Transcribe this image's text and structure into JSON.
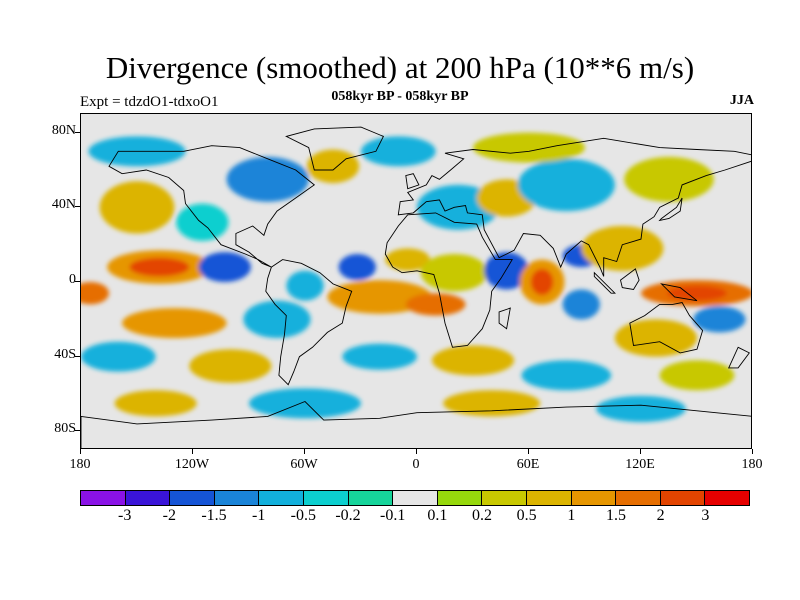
{
  "title": "Divergence (smoothed) at 200 hPa (10**6 m/s)",
  "experiment": "Expt = tdzdO1-tdxoO1",
  "period": "058kyr BP - 058kyr BP",
  "season": "JJA",
  "map": {
    "type": "filled-contour world map",
    "projection": "cylindrical equidistant",
    "variable": "200 hPa divergence difference",
    "lat_labels": [
      {
        "lat": 80,
        "label": "80N"
      },
      {
        "lat": 40,
        "label": "40N"
      },
      {
        "lat": 0,
        "label": "0"
      },
      {
        "lat": -40,
        "label": "40S"
      },
      {
        "lat": -80,
        "label": "80S"
      }
    ],
    "lon_labels": [
      {
        "lon": -180,
        "label": "180"
      },
      {
        "lon": -120,
        "label": "120W"
      },
      {
        "lon": -60,
        "label": "60W"
      },
      {
        "lon": 0,
        "label": "0"
      },
      {
        "lon": 60,
        "label": "60E"
      },
      {
        "lon": 120,
        "label": "120E"
      },
      {
        "lon": 180,
        "label": "180"
      }
    ]
  },
  "colorbar": {
    "colors": [
      "#8a12e6",
      "#3a14d8",
      "#1554d6",
      "#1a84d8",
      "#12b0dc",
      "#0ccfcf",
      "#16d49a",
      "#e6e6e6",
      "#96d80c",
      "#c8c800",
      "#dcb400",
      "#e69600",
      "#e66e00",
      "#e34400",
      "#e60000"
    ],
    "labels": [
      "-3",
      "-2",
      "-1.5",
      "-1",
      "-0.5",
      "-0.2",
      "-0.1",
      "0.1",
      "0.2",
      "0.5",
      "1",
      "1.5",
      "2",
      "3"
    ]
  },
  "anomalies": [
    {
      "lon": -138,
      "lat": 8,
      "rx": 28,
      "ry": 9,
      "level": 11
    },
    {
      "lon": -138,
      "lat": 8,
      "rx": 16,
      "ry": 5,
      "level": 13
    },
    {
      "lon": -103,
      "lat": 8,
      "rx": 14,
      "ry": 8,
      "level": 2
    },
    {
      "lon": -175,
      "lat": -6,
      "rx": 10,
      "ry": 6,
      "level": 12
    },
    {
      "lon": -130,
      "lat": -22,
      "rx": 28,
      "ry": 8,
      "level": 11
    },
    {
      "lon": -150,
      "lat": 40,
      "rx": 20,
      "ry": 14,
      "level": 10
    },
    {
      "lon": -115,
      "lat": 32,
      "rx": 14,
      "ry": 10,
      "level": 5
    },
    {
      "lon": -75,
      "lat": -20,
      "rx": 18,
      "ry": 10,
      "level": 4
    },
    {
      "lon": -60,
      "lat": -2,
      "rx": 10,
      "ry": 8,
      "level": 4
    },
    {
      "lon": -32,
      "lat": 8,
      "rx": 10,
      "ry": 7,
      "level": 2
    },
    {
      "lon": -5,
      "lat": 12,
      "rx": 12,
      "ry": 6,
      "level": 10
    },
    {
      "lon": -20,
      "lat": -8,
      "rx": 28,
      "ry": 9,
      "level": 11
    },
    {
      "lon": 10,
      "lat": -12,
      "rx": 16,
      "ry": 6,
      "level": 12
    },
    {
      "lon": 20,
      "lat": 5,
      "rx": 18,
      "ry": 10,
      "level": 9
    },
    {
      "lon": 48,
      "lat": 6,
      "rx": 12,
      "ry": 10,
      "level": 2
    },
    {
      "lon": 67,
      "lat": 0,
      "rx": 12,
      "ry": 12,
      "level": 11
    },
    {
      "lon": 67,
      "lat": 0,
      "rx": 6,
      "ry": 7,
      "level": 13
    },
    {
      "lon": 88,
      "lat": 14,
      "rx": 10,
      "ry": 6,
      "level": 2
    },
    {
      "lon": 110,
      "lat": 18,
      "rx": 22,
      "ry": 12,
      "level": 10
    },
    {
      "lon": 88,
      "lat": -12,
      "rx": 10,
      "ry": 8,
      "level": 3
    },
    {
      "lon": 150,
      "lat": -6,
      "rx": 30,
      "ry": 7,
      "level": 12
    },
    {
      "lon": 150,
      "lat": -6,
      "rx": 16,
      "ry": 4,
      "level": 13
    },
    {
      "lon": 162,
      "lat": -20,
      "rx": 14,
      "ry": 7,
      "level": 3
    },
    {
      "lon": 128,
      "lat": -30,
      "rx": 22,
      "ry": 10,
      "level": 10
    },
    {
      "lon": 22,
      "lat": 40,
      "rx": 22,
      "ry": 12,
      "level": 4
    },
    {
      "lon": 48,
      "lat": 45,
      "rx": 16,
      "ry": 10,
      "level": 10
    },
    {
      "lon": 80,
      "lat": 52,
      "rx": 26,
      "ry": 14,
      "level": 4
    },
    {
      "lon": 135,
      "lat": 55,
      "rx": 24,
      "ry": 12,
      "level": 9
    },
    {
      "lon": -80,
      "lat": 55,
      "rx": 22,
      "ry": 12,
      "level": 3
    },
    {
      "lon": -45,
      "lat": 62,
      "rx": 14,
      "ry": 9,
      "level": 10
    },
    {
      "lon": -10,
      "lat": 70,
      "rx": 20,
      "ry": 8,
      "level": 4
    },
    {
      "lon": 60,
      "lat": 72,
      "rx": 30,
      "ry": 8,
      "level": 9
    },
    {
      "lon": -150,
      "lat": 70,
      "rx": 26,
      "ry": 8,
      "level": 4
    },
    {
      "lon": -160,
      "lat": -40,
      "rx": 20,
      "ry": 8,
      "level": 4
    },
    {
      "lon": -100,
      "lat": -45,
      "rx": 22,
      "ry": 9,
      "level": 10
    },
    {
      "lon": -20,
      "lat": -40,
      "rx": 20,
      "ry": 7,
      "level": 4
    },
    {
      "lon": 30,
      "lat": -42,
      "rx": 22,
      "ry": 8,
      "level": 10
    },
    {
      "lon": 80,
      "lat": -50,
      "rx": 24,
      "ry": 8,
      "level": 4
    },
    {
      "lon": 150,
      "lat": -50,
      "rx": 20,
      "ry": 8,
      "level": 9
    },
    {
      "lon": -60,
      "lat": -65,
      "rx": 30,
      "ry": 8,
      "level": 4
    },
    {
      "lon": 40,
      "lat": -65,
      "rx": 26,
      "ry": 7,
      "level": 10
    },
    {
      "lon": 120,
      "lat": -68,
      "rx": 24,
      "ry": 7,
      "level": 4
    },
    {
      "lon": -140,
      "lat": -65,
      "rx": 22,
      "ry": 7,
      "level": 10
    }
  ],
  "land": [
    {
      "name": "north-america",
      "points": [
        [
          -165,
          62
        ],
        [
          -160,
          70
        ],
        [
          -140,
          70
        ],
        [
          -125,
          70
        ],
        [
          -110,
          73
        ],
        [
          -95,
          72
        ],
        [
          -80,
          66
        ],
        [
          -65,
          60
        ],
        [
          -55,
          52
        ],
        [
          -65,
          45
        ],
        [
          -75,
          38
        ],
        [
          -80,
          31
        ],
        [
          -82,
          25
        ],
        [
          -88,
          30
        ],
        [
          -97,
          26
        ],
        [
          -97,
          20
        ],
        [
          -90,
          16
        ],
        [
          -83,
          10
        ],
        [
          -78,
          8
        ],
        [
          -85,
          12
        ],
        [
          -92,
          15
        ],
        [
          -105,
          20
        ],
        [
          -112,
          29
        ],
        [
          -117,
          33
        ],
        [
          -124,
          42
        ],
        [
          -125,
          49
        ],
        [
          -133,
          56
        ],
        [
          -145,
          60
        ],
        [
          -158,
          58
        ],
        [
          -165,
          62
        ]
      ]
    },
    {
      "name": "greenland",
      "points": [
        [
          -55,
          60
        ],
        [
          -45,
          60
        ],
        [
          -38,
          66
        ],
        [
          -22,
          70
        ],
        [
          -18,
          78
        ],
        [
          -30,
          83
        ],
        [
          -55,
          82
        ],
        [
          -70,
          78
        ],
        [
          -58,
          72
        ],
        [
          -55,
          60
        ]
      ]
    },
    {
      "name": "south-america",
      "points": [
        [
          -78,
          8
        ],
        [
          -72,
          12
        ],
        [
          -62,
          10
        ],
        [
          -52,
          5
        ],
        [
          -45,
          -1
        ],
        [
          -35,
          -5
        ],
        [
          -38,
          -13
        ],
        [
          -40,
          -22
        ],
        [
          -48,
          -27
        ],
        [
          -56,
          -35
        ],
        [
          -63,
          -40
        ],
        [
          -66,
          -48
        ],
        [
          -69,
          -55
        ],
        [
          -74,
          -50
        ],
        [
          -73,
          -40
        ],
        [
          -71,
          -28
        ],
        [
          -70,
          -18
        ],
        [
          -76,
          -12
        ],
        [
          -81,
          -5
        ],
        [
          -80,
          2
        ],
        [
          -78,
          8
        ]
      ]
    },
    {
      "name": "africa",
      "points": [
        [
          -17,
          15
        ],
        [
          -16,
          21
        ],
        [
          -10,
          30
        ],
        [
          -5,
          36
        ],
        [
          10,
          37
        ],
        [
          20,
          32
        ],
        [
          32,
          31
        ],
        [
          35,
          24
        ],
        [
          42,
          12
        ],
        [
          51,
          12
        ],
        [
          45,
          2
        ],
        [
          40,
          -5
        ],
        [
          39,
          -15
        ],
        [
          35,
          -25
        ],
        [
          27,
          -34
        ],
        [
          19,
          -35
        ],
        [
          15,
          -22
        ],
        [
          12,
          -6
        ],
        [
          9,
          4
        ],
        [
          0,
          6
        ],
        [
          -8,
          5
        ],
        [
          -13,
          8
        ],
        [
          -17,
          15
        ]
      ]
    },
    {
      "name": "eurasia",
      "points": [
        [
          -10,
          36
        ],
        [
          -9,
          43
        ],
        [
          -2,
          44
        ],
        [
          -5,
          48
        ],
        [
          5,
          52
        ],
        [
          8,
          57
        ],
        [
          12,
          55
        ],
        [
          18,
          60
        ],
        [
          25,
          66
        ],
        [
          15,
          69
        ],
        [
          30,
          71
        ],
        [
          50,
          69
        ],
        [
          60,
          70
        ],
        [
          75,
          73
        ],
        [
          100,
          77
        ],
        [
          130,
          72
        ],
        [
          150,
          71
        ],
        [
          170,
          70
        ],
        [
          180,
          68
        ],
        [
          180,
          65
        ],
        [
          165,
          60
        ],
        [
          155,
          57
        ],
        [
          142,
          52
        ],
        [
          140,
          45
        ],
        [
          130,
          40
        ],
        [
          127,
          35
        ],
        [
          121,
          31
        ],
        [
          120,
          23
        ],
        [
          110,
          20
        ],
        [
          107,
          11
        ],
        [
          100,
          13
        ],
        [
          100,
          3
        ],
        [
          98,
          8
        ],
        [
          92,
          20
        ],
        [
          88,
          22
        ],
        [
          80,
          15
        ],
        [
          77,
          8
        ],
        [
          73,
          18
        ],
        [
          66,
          25
        ],
        [
          57,
          26
        ],
        [
          52,
          17
        ],
        [
          44,
          13
        ],
        [
          36,
          28
        ],
        [
          35,
          36
        ],
        [
          27,
          37
        ],
        [
          26,
          41
        ],
        [
          20,
          40
        ],
        [
          15,
          38
        ],
        [
          12,
          44
        ],
        [
          5,
          43
        ],
        [
          -2,
          37
        ],
        [
          -10,
          36
        ]
      ]
    },
    {
      "name": "australia",
      "points": [
        [
          114,
          -22
        ],
        [
          122,
          -18
        ],
        [
          130,
          -12
        ],
        [
          137,
          -12
        ],
        [
          142,
          -11
        ],
        [
          146,
          -18
        ],
        [
          153,
          -26
        ],
        [
          150,
          -36
        ],
        [
          141,
          -38
        ],
        [
          130,
          -32
        ],
        [
          116,
          -34
        ],
        [
          114,
          -22
        ]
      ]
    },
    {
      "name": "antarctica",
      "points": [
        [
          -180,
          -72
        ],
        [
          -150,
          -76
        ],
        [
          -110,
          -74
        ],
        [
          -80,
          -72
        ],
        [
          -60,
          -64
        ],
        [
          -50,
          -74
        ],
        [
          -20,
          -73
        ],
        [
          0,
          -70
        ],
        [
          40,
          -69
        ],
        [
          80,
          -67
        ],
        [
          120,
          -66
        ],
        [
          160,
          -70
        ],
        [
          180,
          -72
        ],
        [
          180,
          -90
        ],
        [
          -180,
          -90
        ]
      ]
    },
    {
      "name": "madagascar",
      "points": [
        [
          44,
          -16
        ],
        [
          50,
          -14
        ],
        [
          48,
          -25
        ],
        [
          44,
          -22
        ],
        [
          44,
          -16
        ]
      ]
    },
    {
      "name": "japan",
      "points": [
        [
          130,
          33
        ],
        [
          135,
          34
        ],
        [
          141,
          38
        ],
        [
          142,
          45
        ],
        [
          139,
          40
        ],
        [
          131,
          34
        ],
        [
          130,
          33
        ]
      ]
    },
    {
      "name": "uk",
      "points": [
        [
          -5,
          50
        ],
        [
          1,
          52
        ],
        [
          -2,
          58
        ],
        [
          -6,
          57
        ],
        [
          -5,
          50
        ]
      ]
    },
    {
      "name": "new-guinea",
      "points": [
        [
          131,
          -1
        ],
        [
          141,
          -3
        ],
        [
          150,
          -10
        ],
        [
          138,
          -8
        ],
        [
          131,
          -1
        ]
      ]
    },
    {
      "name": "borneo",
      "points": [
        [
          109,
          1
        ],
        [
          117,
          7
        ],
        [
          119,
          1
        ],
        [
          116,
          -4
        ],
        [
          110,
          -3
        ],
        [
          109,
          1
        ]
      ]
    },
    {
      "name": "sumatra",
      "points": [
        [
          95,
          5
        ],
        [
          106,
          -6
        ],
        [
          104,
          -6
        ],
        [
          95,
          3
        ],
        [
          95,
          5
        ]
      ]
    },
    {
      "name": "new-zealand",
      "points": [
        [
          172,
          -35
        ],
        [
          178,
          -38
        ],
        [
          172,
          -46
        ],
        [
          167,
          -46
        ],
        [
          172,
          -35
        ]
      ]
    }
  ]
}
